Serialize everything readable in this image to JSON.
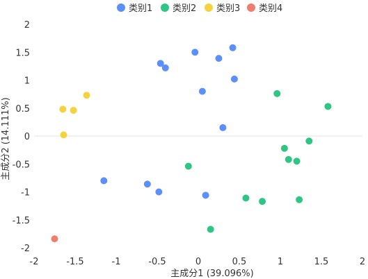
{
  "chart_data": {
    "type": "scatter",
    "xlabel": "主成分1 (39.096%)",
    "ylabel": "主成分2 (14.111%)",
    "xlim": [
      -2,
      2
    ],
    "ylim": [
      -2,
      2
    ],
    "x_ticks": [
      -2,
      -1.5,
      -1,
      -0.5,
      0,
      0.5,
      1,
      1.5,
      2
    ],
    "y_ticks": [
      -2,
      -1.5,
      -1,
      -0.5,
      0,
      0.5,
      1,
      1.5,
      2
    ],
    "grid": false,
    "legend_position": "top-center",
    "series": [
      {
        "name": "类别1",
        "color": "#5B8FF9",
        "points": [
          [
            -0.04,
            1.5
          ],
          [
            0.42,
            1.58
          ],
          [
            0.25,
            1.39
          ],
          [
            -0.46,
            1.3
          ],
          [
            -0.4,
            1.22
          ],
          [
            0.44,
            1.02
          ],
          [
            0.05,
            0.8
          ],
          [
            0.3,
            0.15
          ],
          [
            -1.15,
            -0.8
          ],
          [
            -0.62,
            -0.86
          ],
          [
            -0.48,
            -1.0
          ],
          [
            0.09,
            -1.06
          ]
        ]
      },
      {
        "name": "类别2",
        "color": "#2FC684",
        "points": [
          [
            0.96,
            0.76
          ],
          [
            1.58,
            0.53
          ],
          [
            1.35,
            -0.09
          ],
          [
            1.05,
            -0.22
          ],
          [
            1.1,
            -0.42
          ],
          [
            1.2,
            -0.45
          ],
          [
            -0.12,
            -0.54
          ],
          [
            0.58,
            -1.11
          ],
          [
            0.78,
            -1.17
          ],
          [
            1.23,
            -1.14
          ],
          [
            0.15,
            -1.67
          ]
        ]
      },
      {
        "name": "类别3",
        "color": "#F6D33E",
        "points": [
          [
            -1.36,
            0.73
          ],
          [
            -1.65,
            0.48
          ],
          [
            -1.52,
            0.46
          ],
          [
            -1.64,
            0.02
          ]
        ]
      },
      {
        "name": "类别4",
        "color": "#F07D6E",
        "points": [
          [
            -1.75,
            -1.84
          ]
        ]
      }
    ]
  }
}
